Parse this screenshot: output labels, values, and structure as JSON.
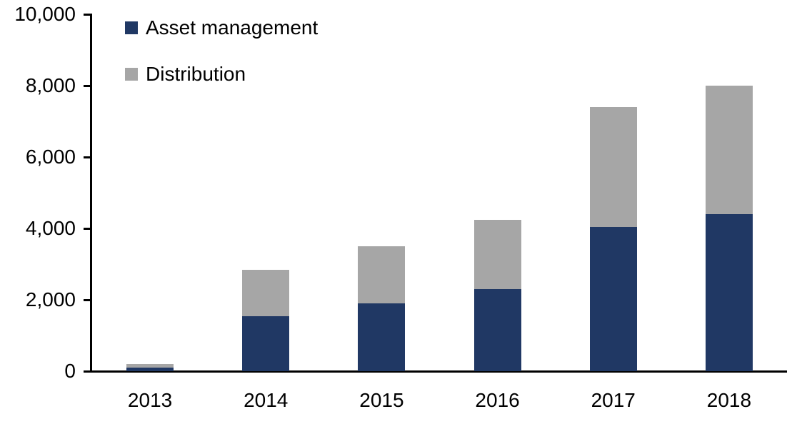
{
  "chart_data": {
    "type": "bar",
    "stacked": true,
    "title": "",
    "xlabel": "",
    "ylabel": "",
    "categories": [
      "2013",
      "2014",
      "2015",
      "2016",
      "2017",
      "2018"
    ],
    "series": [
      {
        "name": "Asset management",
        "color": "#203864",
        "values": [
          100,
          1550,
          1900,
          2300,
          4050,
          4400
        ]
      },
      {
        "name": "Distribution",
        "color": "#A6A6A6",
        "values": [
          100,
          1300,
          1600,
          1950,
          3350,
          3600
        ]
      }
    ],
    "ylim": [
      0,
      10000
    ],
    "yticks": [
      0,
      2000,
      4000,
      6000,
      8000,
      10000
    ],
    "ytick_labels": [
      "0",
      "2,000",
      "4,000",
      "6,000",
      "8,000",
      "10,000"
    ],
    "legend_position": "top-left",
    "grid": false
  },
  "colors": {
    "axis": "#000000",
    "text": "#000000",
    "background": "#FFFFFF"
  }
}
